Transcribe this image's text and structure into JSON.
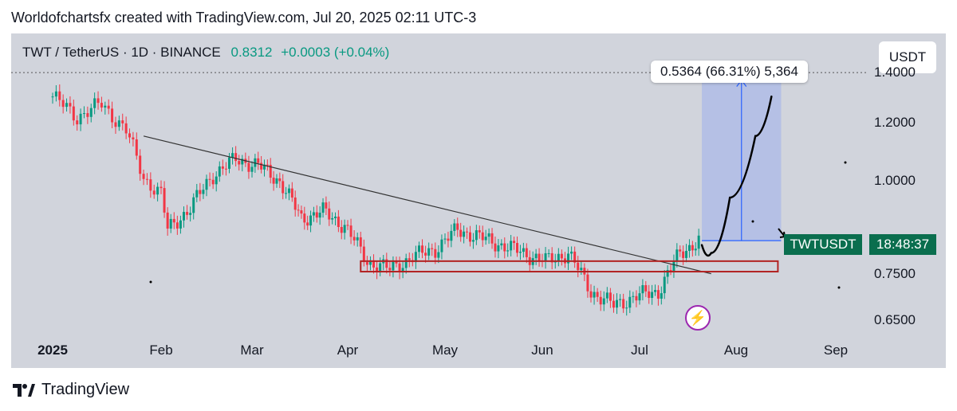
{
  "header": {
    "text": "Worldofchartsfx created with TradingView.com, Jul 20, 2025 02:11 UTC-3"
  },
  "symbol": {
    "label": "TWT / TetherUS · 1D · BINANCE",
    "price": "0.8312",
    "change": "+0.0003 (+0.04%)"
  },
  "currency": "USDT",
  "measure": {
    "label": "0.5364 (66.31%) 5,364"
  },
  "badges": {
    "ticker": "TWTUSDT",
    "countdown": "18:48:37"
  },
  "footer": {
    "brand": "TradingView"
  },
  "icons": {
    "alert": "lightning-icon",
    "logo": "tradingview-logo-icon"
  },
  "colors": {
    "up": "#089981",
    "down": "#f23645",
    "rect_border": "#b22222",
    "measure_fill": "#aab8e8",
    "measure_line": "#2962ff",
    "badge": "#0a6e4e"
  },
  "chart_data": {
    "type": "candlestick",
    "title": "TWT / TetherUS · 1D · BINANCE",
    "xlabel": "",
    "ylabel": "",
    "x_ticks": [
      "2025",
      "Feb",
      "Mar",
      "Apr",
      "May",
      "Jun",
      "Jul",
      "Aug",
      "Sep"
    ],
    "y_ticks": [
      "1.4000",
      "1.2000",
      "1.0000",
      "0.7500",
      "0.6500"
    ],
    "y_scale": "log",
    "ylim": [
      0.6,
      1.55
    ],
    "grid": false,
    "x_labels_dates": [
      "2025-01-01",
      "2025-02-01",
      "2025-03-01",
      "2025-04-01",
      "2025-05-01",
      "2025-06-01",
      "2025-07-01",
      "2025-08-01",
      "2025-09-01"
    ],
    "close_series": [
      {
        "date": "2025-01-01",
        "close": 1.3
      },
      {
        "date": "2025-01-08",
        "close": 1.22
      },
      {
        "date": "2025-01-15",
        "close": 1.27
      },
      {
        "date": "2025-01-22",
        "close": 1.17
      },
      {
        "date": "2025-01-27",
        "close": 1.01
      },
      {
        "date": "2025-02-01",
        "close": 0.96
      },
      {
        "date": "2025-02-03",
        "close": 0.86
      },
      {
        "date": "2025-02-10",
        "close": 0.92
      },
      {
        "date": "2025-02-17",
        "close": 1.02
      },
      {
        "date": "2025-02-24",
        "close": 1.07
      },
      {
        "date": "2025-03-03",
        "close": 1.05
      },
      {
        "date": "2025-03-10",
        "close": 1.0
      },
      {
        "date": "2025-03-17",
        "close": 0.89
      },
      {
        "date": "2025-03-24",
        "close": 0.91
      },
      {
        "date": "2025-03-31",
        "close": 0.87
      },
      {
        "date": "2025-04-07",
        "close": 0.78
      },
      {
        "date": "2025-04-14",
        "close": 0.76
      },
      {
        "date": "2025-04-21",
        "close": 0.79
      },
      {
        "date": "2025-04-28",
        "close": 0.81
      },
      {
        "date": "2025-05-05",
        "close": 0.86
      },
      {
        "date": "2025-05-12",
        "close": 0.84
      },
      {
        "date": "2025-05-19",
        "close": 0.82
      },
      {
        "date": "2025-05-26",
        "close": 0.8
      },
      {
        "date": "2025-06-02",
        "close": 0.78
      },
      {
        "date": "2025-06-09",
        "close": 0.8
      },
      {
        "date": "2025-06-16",
        "close": 0.71
      },
      {
        "date": "2025-06-23",
        "close": 0.68
      },
      {
        "date": "2025-06-30",
        "close": 0.7
      },
      {
        "date": "2025-07-07",
        "close": 0.71
      },
      {
        "date": "2025-07-14",
        "close": 0.8
      },
      {
        "date": "2025-07-20",
        "close": 0.8312
      }
    ],
    "annotations": {
      "trendline": [
        {
          "date": "2025-01-27",
          "price": 1.15
        },
        {
          "date": "2025-07-24",
          "price": 0.75
        }
      ],
      "support_zone": {
        "from": "2025-04-05",
        "to": "2025-08-14",
        "low": 0.755,
        "high": 0.78
      },
      "measure": {
        "from": "2025-07-21",
        "to": "2025-08-15",
        "low": 0.8312,
        "high": 1.3676,
        "label": "0.5364 (66.31%) 5,364"
      },
      "projection": [
        {
          "date": "2025-07-21",
          "price": 0.82
        },
        {
          "date": "2025-07-24",
          "price": 0.8
        },
        {
          "date": "2025-07-30",
          "price": 0.95
        },
        {
          "date": "2025-08-07",
          "price": 1.15
        },
        {
          "date": "2025-08-12",
          "price": 1.3
        }
      ]
    }
  }
}
